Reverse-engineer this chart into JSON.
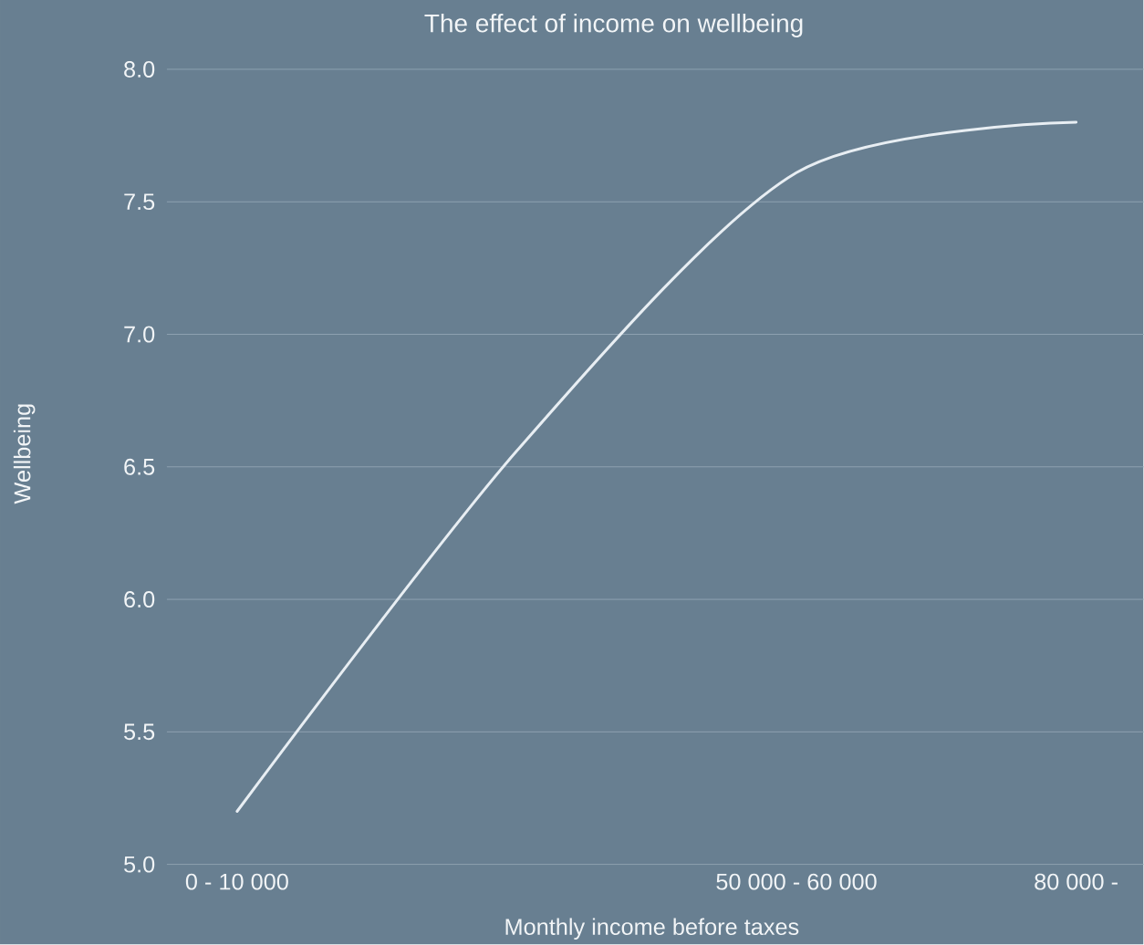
{
  "chart_data": {
    "type": "line",
    "title": "The effect of income on wellbeing",
    "xlabel": "Monthly income before taxes",
    "ylabel": "Wellbeing",
    "categories": [
      "0 - 10 000",
      null,
      "50 000 - 60 000",
      "80 000 -"
    ],
    "series": [
      {
        "color": "#e8eef3",
        "values": [
          5.2,
          6.56,
          7.61,
          7.8
        ]
      }
    ],
    "ylim": [
      5.0,
      8.0
    ],
    "yticks": [
      {
        "value": 5.0,
        "label": "5.0"
      },
      {
        "value": 5.5,
        "label": "5.5"
      },
      {
        "value": 6.0,
        "label": "6.0"
      },
      {
        "value": 6.5,
        "label": "6.5"
      },
      {
        "value": 7.0,
        "label": "7.0"
      },
      {
        "value": 7.5,
        "label": "7.5"
      },
      {
        "value": 8.0,
        "label": "8.0"
      }
    ],
    "grid": "y",
    "marker": "none",
    "line_style": "solid"
  }
}
